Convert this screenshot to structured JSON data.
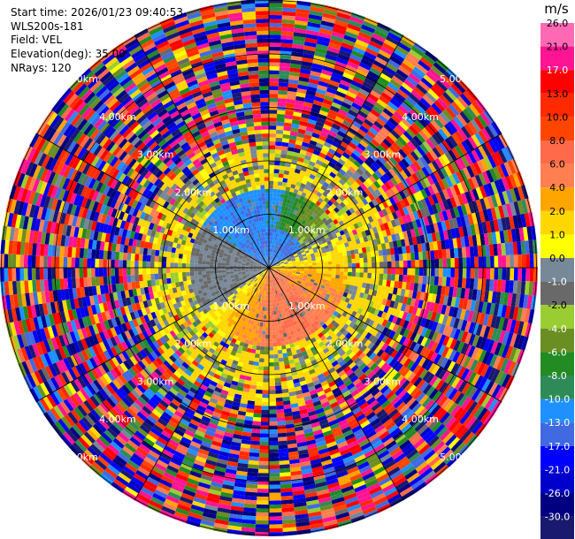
{
  "info": {
    "start_time": "Start time: 2026/01/23 09:40:53",
    "site": "WLS200s-181",
    "field": "Field: VEL",
    "elevation": "Elevation(deg): 35.00",
    "nrays": "NRays: 120"
  },
  "chart_data": {
    "type": "heatmap",
    "projection": "polar-ppi",
    "field": "VEL",
    "units": "m/s",
    "elevation_deg": 35.0,
    "n_rays": 120,
    "max_range_km": 5.5,
    "range_ring_km": [
      1.0,
      2.0,
      3.0,
      4.0,
      5.0
    ],
    "range_labels": [
      "1.00km",
      "2.00km",
      "3.00km",
      "4.00km",
      "5.00km"
    ],
    "radial_lines": 12,
    "region_summary": [
      {
        "range_km": [
          0.0,
          0.8
        ],
        "sector": "north",
        "velocity_ms": -10.0
      },
      {
        "range_km": [
          0.0,
          1.5
        ],
        "sector": "north",
        "velocity_ms": -6.0
      },
      {
        "range_km": [
          0.0,
          1.5
        ],
        "sector": "south",
        "velocity_ms": 8.0
      },
      {
        "range_km": [
          0.0,
          1.5
        ],
        "sector": "east",
        "velocity_ms": 4.0
      },
      {
        "range_km": [
          0.0,
          1.5
        ],
        "sector": "west",
        "velocity_ms": 0.0
      },
      {
        "range_km": [
          1.5,
          2.2
        ],
        "sector": "all",
        "velocity_ms": 3.0
      },
      {
        "range_km": [
          2.2,
          5.5
        ],
        "sector": "all",
        "velocity_ms": "noise (random, full scale)"
      }
    ],
    "colorbar": {
      "unit": "m/s",
      "ticks": [
        "26.0",
        "21.0",
        "17.0",
        "13.0",
        "10.0",
        "8.0",
        "6.0",
        "4.0",
        "2.0",
        "1.0",
        "0.0",
        "-1.0",
        "-2.0",
        "-4.0",
        "-6.0",
        "-8.0",
        "-10.0",
        "-13.0",
        "-17.0",
        "-21.0",
        "-26.0",
        "-30.0"
      ],
      "colors": [
        "#ff69b4",
        "#ff1493",
        "#ff0000",
        "#ff2a00",
        "#ff4500",
        "#ff6a4a",
        "#ff7f50",
        "#ffa500",
        "#ffd700",
        "#ffff00",
        "#778899",
        "#696969",
        "#9acd32",
        "#6b8e23",
        "#228b22",
        "#2e8b57",
        "#1e90ff",
        "#4169e1",
        "#0000ff",
        "#0000cd",
        "#000080",
        "#191970"
      ]
    }
  }
}
